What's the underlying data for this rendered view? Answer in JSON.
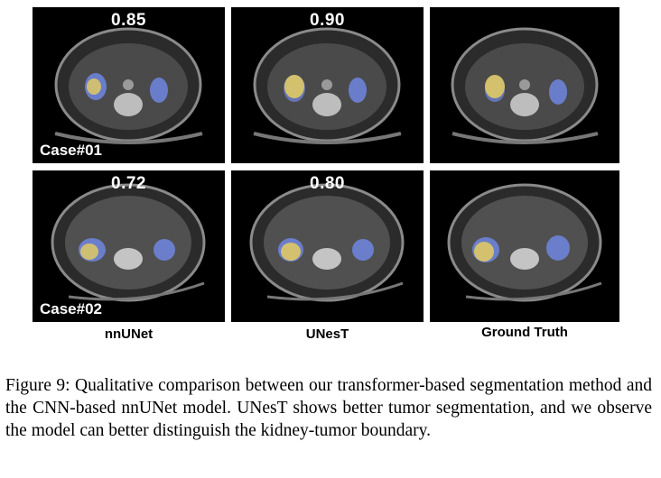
{
  "figure": {
    "columns": [
      "nnUNet",
      "UNesT",
      "Ground Truth"
    ],
    "rows": [
      {
        "case_label": "Case#01",
        "scores": [
          "0.85",
          "0.90",
          ""
        ]
      },
      {
        "case_label": "Case#02",
        "scores": [
          "0.72",
          "0.80",
          ""
        ]
      }
    ],
    "colors": {
      "kidney": "#6f86e0",
      "tumor": "#d9c56a"
    }
  },
  "caption": "Figure 9: Qualitative comparison between our transformer-based segmentation method and the CNN-based nnUNet model. UNesT shows better tumor segmentation, and we observe the model can better distinguish the kidney-tumor boundary."
}
